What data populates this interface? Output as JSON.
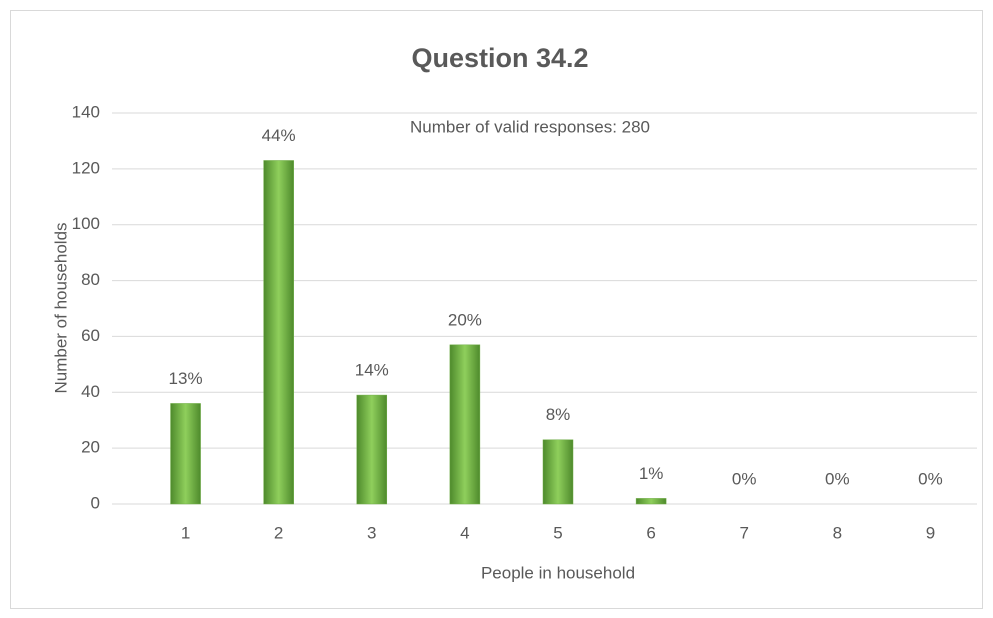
{
  "chart_data": {
    "type": "bar",
    "title": "Question 34.2",
    "annotation": "Number of valid responses: 280",
    "x_label": "People in household",
    "y_label": "Number of households",
    "categories": [
      "1",
      "2",
      "3",
      "4",
      "5",
      "6",
      "7",
      "8",
      "9"
    ],
    "values": [
      36,
      123,
      39,
      57,
      23,
      2,
      0,
      0,
      0
    ],
    "value_labels": [
      "13%",
      "44%",
      "14%",
      "20%",
      "8%",
      "1%",
      "0%",
      "0%",
      "0%"
    ],
    "color": "#70ad47",
    "ylim": [
      0,
      140
    ],
    "yticks": [
      0,
      20,
      40,
      60,
      80,
      100,
      120,
      140
    ],
    "grid": true
  }
}
